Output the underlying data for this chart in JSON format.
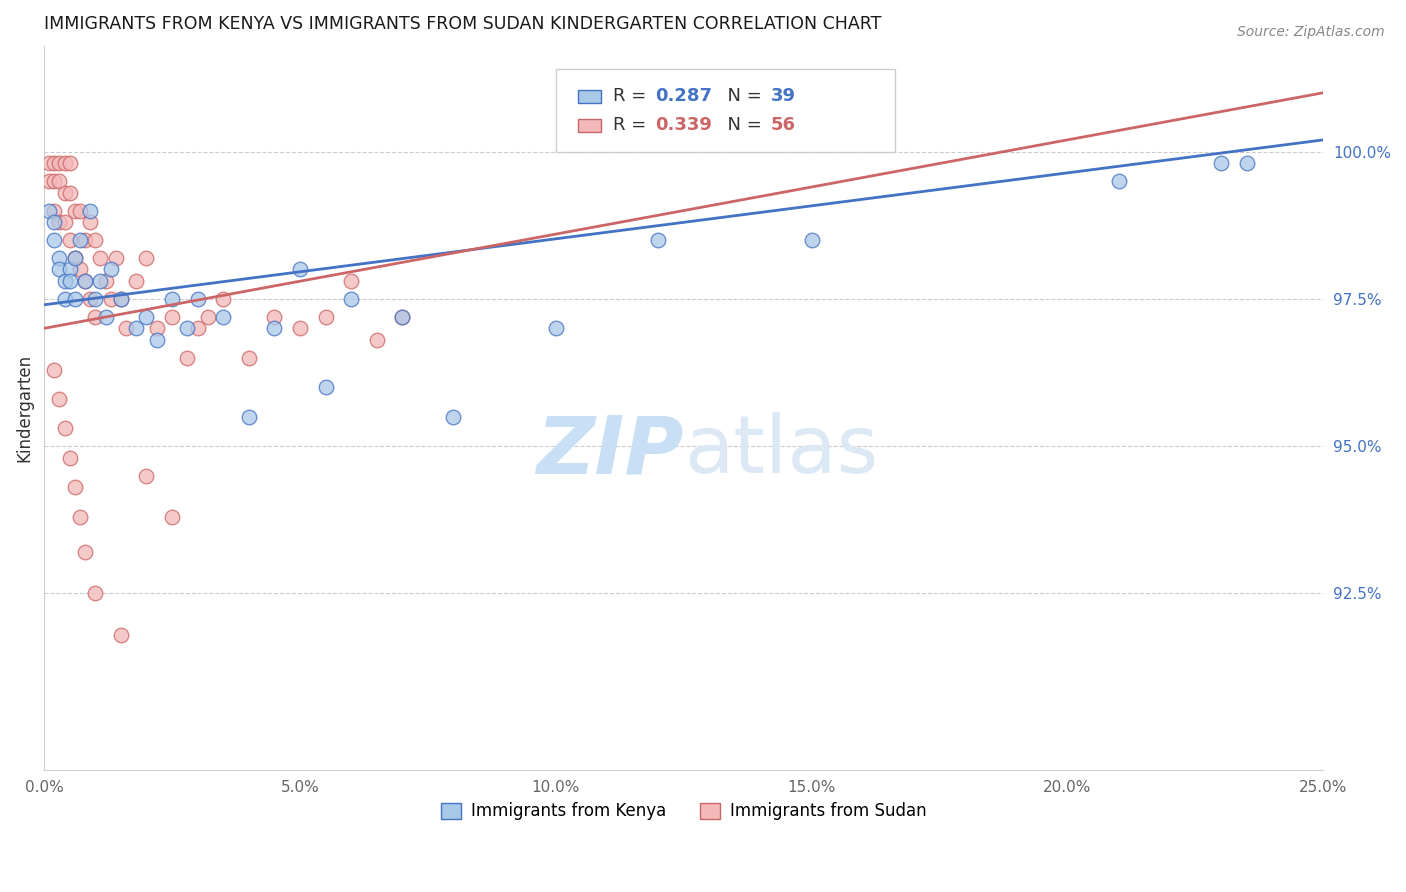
{
  "title": "IMMIGRANTS FROM KENYA VS IMMIGRANTS FROM SUDAN KINDERGARTEN CORRELATION CHART",
  "source": "Source: ZipAtlas.com",
  "ylabel": "Kindergarten",
  "ytick_labels": [
    "92.5%",
    "95.0%",
    "97.5%",
    "100.0%"
  ],
  "ytick_values": [
    0.925,
    0.95,
    0.975,
    1.0
  ],
  "xtick_values": [
    0.0,
    0.05,
    0.1,
    0.15,
    0.2,
    0.25
  ],
  "xtick_labels": [
    "0.0%",
    "5.0%",
    "10.0%",
    "15.0%",
    "20.0%",
    "25.0%"
  ],
  "xlim": [
    0.0,
    0.25
  ],
  "ylim": [
    0.895,
    1.018
  ],
  "R_kenya": 0.287,
  "N_kenya": 39,
  "R_sudan": 0.339,
  "N_sudan": 56,
  "color_kenya_face": "#a8c8e8",
  "color_kenya_edge": "#4472c4",
  "color_sudan_face": "#f4b8b8",
  "color_sudan_edge": "#cc6666",
  "line_color_kenya": "#4472c4",
  "line_color_sudan": "#cc6666",
  "watermark_text": "ZIPatlas",
  "watermark_color": "#ddeeff",
  "right_axis_color": "#4472c4",
  "kenya_x": [
    0.001,
    0.002,
    0.002,
    0.003,
    0.003,
    0.004,
    0.004,
    0.005,
    0.005,
    0.006,
    0.006,
    0.007,
    0.008,
    0.009,
    0.01,
    0.011,
    0.012,
    0.013,
    0.015,
    0.018,
    0.02,
    0.022,
    0.025,
    0.028,
    0.03,
    0.035,
    0.04,
    0.045,
    0.05,
    0.055,
    0.06,
    0.07,
    0.08,
    0.1,
    0.12,
    0.15,
    0.21,
    0.23,
    0.235
  ],
  "kenya_y": [
    0.99,
    0.988,
    0.985,
    0.982,
    0.98,
    0.978,
    0.975,
    0.98,
    0.978,
    0.982,
    0.975,
    0.985,
    0.978,
    0.99,
    0.975,
    0.978,
    0.972,
    0.98,
    0.975,
    0.97,
    0.972,
    0.968,
    0.975,
    0.97,
    0.975,
    0.972,
    0.955,
    0.97,
    0.98,
    0.96,
    0.975,
    0.972,
    0.955,
    0.97,
    0.985,
    0.985,
    0.995,
    0.998,
    0.998
  ],
  "sudan_x": [
    0.001,
    0.001,
    0.002,
    0.002,
    0.002,
    0.003,
    0.003,
    0.003,
    0.004,
    0.004,
    0.004,
    0.005,
    0.005,
    0.005,
    0.006,
    0.006,
    0.007,
    0.007,
    0.008,
    0.008,
    0.009,
    0.009,
    0.01,
    0.01,
    0.011,
    0.012,
    0.013,
    0.014,
    0.015,
    0.016,
    0.018,
    0.02,
    0.022,
    0.025,
    0.028,
    0.03,
    0.032,
    0.035,
    0.04,
    0.045,
    0.05,
    0.055,
    0.06,
    0.065,
    0.07,
    0.002,
    0.003,
    0.004,
    0.005,
    0.006,
    0.007,
    0.008,
    0.01,
    0.015,
    0.02,
    0.025
  ],
  "sudan_y": [
    0.998,
    0.995,
    0.998,
    0.995,
    0.99,
    0.998,
    0.995,
    0.988,
    0.998,
    0.993,
    0.988,
    0.998,
    0.993,
    0.985,
    0.99,
    0.982,
    0.99,
    0.98,
    0.985,
    0.978,
    0.988,
    0.975,
    0.985,
    0.972,
    0.982,
    0.978,
    0.975,
    0.982,
    0.975,
    0.97,
    0.978,
    0.982,
    0.97,
    0.972,
    0.965,
    0.97,
    0.972,
    0.975,
    0.965,
    0.972,
    0.97,
    0.972,
    0.978,
    0.968,
    0.972,
    0.963,
    0.958,
    0.953,
    0.948,
    0.943,
    0.938,
    0.932,
    0.925,
    0.918,
    0.945,
    0.938
  ],
  "kenya_line_x": [
    0.0,
    0.25
  ],
  "kenya_line_y": [
    0.974,
    1.002
  ],
  "sudan_line_x": [
    0.0,
    0.25
  ],
  "sudan_line_y": [
    0.97,
    1.01
  ]
}
